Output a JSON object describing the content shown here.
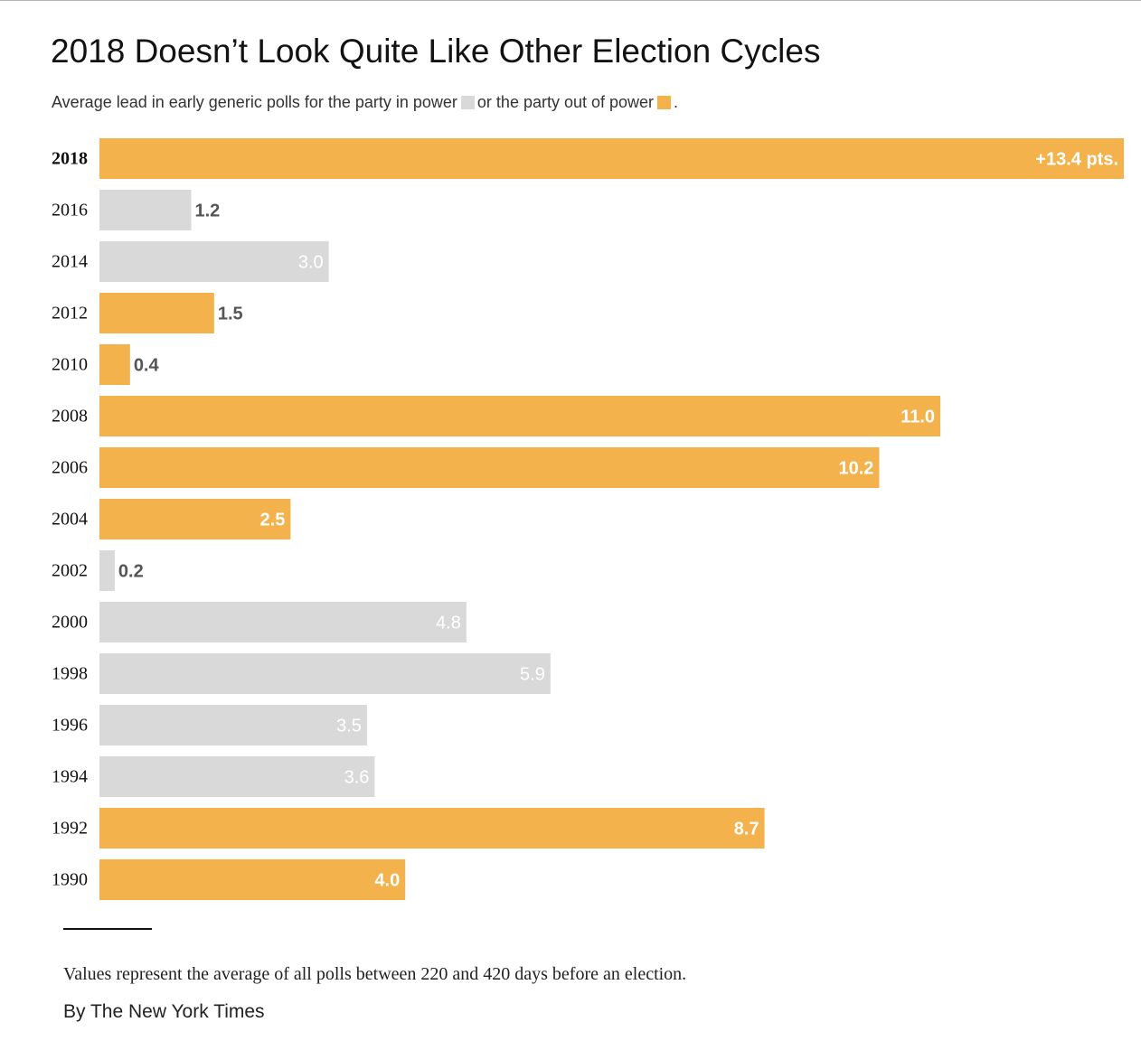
{
  "colors": {
    "in_power": "#d9d9d9",
    "out_of_power": "#f3b24c",
    "label_dark": "#555555",
    "label_light": "#ffffff"
  },
  "header": {
    "title": "2018 Doesn’t Look Quite Like Other Election Cycles",
    "subtitle_part1": "Average lead in early generic polls for the party in power",
    "subtitle_part2": "or the party out of power",
    "subtitle_end": "."
  },
  "chart_data": {
    "type": "bar",
    "orientation": "horizontal",
    "title": "2018 Doesn’t Look Quite Like Other Election Cycles",
    "subtitle": "Average lead in early generic polls for the party in power or the party out of power.",
    "xlim": [
      0,
      13.4
    ],
    "grid": false,
    "bars": [
      {
        "year": "2018",
        "value": 13.4,
        "label": "+13.4 pts.",
        "party": "out_of_power"
      },
      {
        "year": "2016",
        "value": 1.2,
        "label": "1.2",
        "party": "in_power"
      },
      {
        "year": "2014",
        "value": 3.0,
        "label": "3.0",
        "party": "in_power"
      },
      {
        "year": "2012",
        "value": 1.5,
        "label": "1.5",
        "party": "out_of_power"
      },
      {
        "year": "2010",
        "value": 0.4,
        "label": "0.4",
        "party": "out_of_power"
      },
      {
        "year": "2008",
        "value": 11.0,
        "label": "11.0",
        "party": "out_of_power"
      },
      {
        "year": "2006",
        "value": 10.2,
        "label": "10.2",
        "party": "out_of_power"
      },
      {
        "year": "2004",
        "value": 2.5,
        "label": "2.5",
        "party": "out_of_power"
      },
      {
        "year": "2002",
        "value": 0.2,
        "label": "0.2",
        "party": "in_power"
      },
      {
        "year": "2000",
        "value": 4.8,
        "label": "4.8",
        "party": "in_power"
      },
      {
        "year": "1998",
        "value": 5.9,
        "label": "5.9",
        "party": "in_power"
      },
      {
        "year": "1996",
        "value": 3.5,
        "label": "3.5",
        "party": "in_power"
      },
      {
        "year": "1994",
        "value": 3.6,
        "label": "3.6",
        "party": "in_power"
      },
      {
        "year": "1992",
        "value": 8.7,
        "label": "8.7",
        "party": "out_of_power"
      },
      {
        "year": "1990",
        "value": 4.0,
        "label": "4.0",
        "party": "out_of_power"
      }
    ]
  },
  "footer": {
    "note": "Values represent the average of all polls between 220 and 420 days before an election.",
    "credit": "By The New York Times"
  }
}
